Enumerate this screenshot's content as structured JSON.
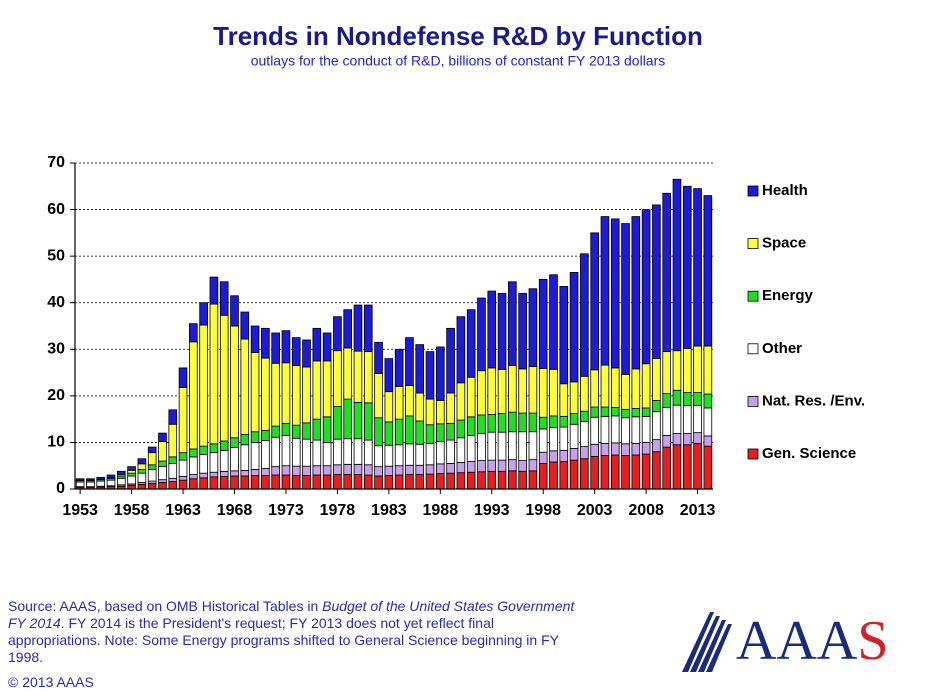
{
  "chart_data": {
    "type": "stacked-bar",
    "title": "Trends in Nondefense R&D by Function",
    "subtitle": "outlays for the conduct of R&D, billions of constant FY 2013 dollars",
    "x": [
      1953,
      1954,
      1955,
      1956,
      1957,
      1958,
      1959,
      1960,
      1961,
      1962,
      1963,
      1964,
      1965,
      1966,
      1967,
      1968,
      1969,
      1970,
      1971,
      1972,
      1973,
      1974,
      1975,
      1976,
      1977,
      1978,
      1979,
      1980,
      1981,
      1982,
      1983,
      1984,
      1985,
      1986,
      1987,
      1988,
      1989,
      1990,
      1991,
      1992,
      1993,
      1994,
      1995,
      1996,
      1997,
      1998,
      1999,
      2000,
      2001,
      2002,
      2003,
      2004,
      2005,
      2006,
      2007,
      2008,
      2009,
      2010,
      2011,
      2012,
      2013,
      2014
    ],
    "xlim": [
      1952.5,
      2014.5
    ],
    "xticks": [
      1953,
      1958,
      1963,
      1968,
      1973,
      1978,
      1983,
      1988,
      1993,
      1998,
      2003,
      2008,
      2013
    ],
    "ylim": [
      0,
      70
    ],
    "yticks": [
      0,
      10,
      20,
      30,
      40,
      50,
      60,
      70
    ],
    "grid": true,
    "legend": "right",
    "series": [
      {
        "name": "Health",
        "color": "#1c1cd8",
        "values": [
          0.3,
          0.3,
          0.4,
          0.5,
          0.7,
          0.8,
          1.1,
          1.2,
          1.8,
          3.1,
          4.2,
          3.9,
          4.8,
          5.8,
          7.2,
          6.5,
          5.8,
          5.7,
          6.4,
          6.5,
          6.9,
          6.0,
          5.8,
          7.0,
          6.0,
          7.3,
          8.2,
          9.9,
          10.0,
          6.7,
          7.1,
          8.0,
          10.3,
          10.4,
          10.2,
          11.5,
          13.9,
          14.2,
          14.5,
          15.6,
          16.5,
          16.3,
          18.0,
          16.2,
          16.7,
          19.1,
          20.3,
          20.9,
          23.5,
          26.3,
          29.4,
          31.9,
          32.0,
          32.4,
          32.7,
          33.1,
          33.0,
          34.0,
          36.8,
          34.8,
          33.8,
          32.3
        ]
      },
      {
        "name": "Space",
        "color": "#ffff33",
        "values": [
          0.1,
          0.1,
          0.1,
          0.2,
          0.3,
          0.6,
          1.2,
          2.6,
          4.2,
          7.0,
          14.0,
          23.0,
          26.0,
          30.0,
          27.0,
          24.0,
          20.5,
          17.0,
          15.5,
          13.5,
          13.0,
          12.8,
          12.0,
          12.5,
          12.0,
          12.0,
          11.0,
          11.0,
          11.0,
          9.5,
          6.5,
          7.0,
          6.5,
          6.0,
          5.5,
          5.0,
          6.5,
          8.0,
          8.5,
          9.5,
          10.0,
          9.5,
          10.0,
          9.5,
          10.0,
          10.5,
          10.0,
          7.0,
          6.8,
          7.5,
          8.0,
          9.0,
          8.5,
          7.5,
          8.5,
          9.5,
          9.0,
          9.0,
          8.5,
          9.5,
          10.0,
          10.3
        ]
      },
      {
        "name": "Energy",
        "color": "#22dd22",
        "values": [
          0.3,
          0.3,
          0.3,
          0.4,
          0.5,
          0.6,
          0.8,
          1.0,
          1.2,
          1.4,
          1.6,
          1.7,
          1.8,
          1.9,
          2.0,
          2.1,
          2.2,
          2.3,
          2.2,
          2.4,
          2.6,
          2.8,
          3.5,
          4.5,
          5.5,
          7.0,
          8.5,
          7.8,
          8.0,
          6.0,
          5.0,
          5.5,
          6.0,
          5.0,
          4.0,
          3.8,
          3.6,
          3.8,
          4.0,
          4.0,
          3.8,
          4.0,
          4.2,
          4.0,
          4.0,
          2.5,
          2.5,
          2.3,
          2.3,
          2.2,
          2.2,
          2.0,
          1.8,
          1.8,
          1.8,
          1.8,
          2.4,
          3.0,
          3.2,
          2.8,
          2.8,
          3.0
        ]
      },
      {
        "name": "Other",
        "color": "#ffffff",
        "values": [
          1.0,
          1.0,
          1.1,
          1.2,
          1.4,
          1.7,
          2.0,
          2.5,
          2.8,
          3.2,
          3.5,
          3.8,
          4.0,
          4.2,
          4.5,
          5.0,
          5.5,
          5.8,
          6.0,
          6.3,
          6.5,
          6.0,
          5.8,
          5.5,
          5.0,
          5.5,
          5.5,
          5.5,
          5.3,
          4.5,
          4.5,
          4.5,
          4.6,
          4.5,
          4.6,
          4.8,
          5.0,
          5.3,
          5.6,
          5.8,
          6.0,
          6.0,
          6.0,
          6.2,
          6.0,
          5.0,
          5.0,
          5.0,
          5.2,
          5.4,
          5.8,
          5.8,
          5.8,
          5.6,
          5.7,
          5.6,
          6.0,
          6.0,
          6.1,
          6.0,
          5.8,
          6.0
        ]
      },
      {
        "name": "Nat. Res. /Env.",
        "color": "#c8a0f0",
        "values": [
          0.2,
          0.2,
          0.2,
          0.2,
          0.3,
          0.3,
          0.4,
          0.5,
          0.6,
          0.7,
          0.8,
          0.9,
          1.0,
          1.0,
          1.1,
          1.1,
          1.2,
          1.3,
          1.5,
          1.8,
          2.0,
          2.0,
          2.0,
          2.0,
          2.0,
          2.1,
          2.2,
          2.2,
          2.2,
          2.0,
          2.0,
          2.0,
          2.0,
          2.0,
          2.0,
          2.1,
          2.1,
          2.2,
          2.3,
          2.4,
          2.4,
          2.4,
          2.4,
          2.3,
          2.4,
          2.4,
          2.4,
          2.4,
          2.5,
          2.6,
          2.6,
          2.6,
          2.6,
          2.5,
          2.5,
          2.5,
          2.6,
          2.5,
          2.4,
          2.4,
          2.3,
          2.2
        ]
      },
      {
        "name": "Gen. Science",
        "color": "#e81e1e",
        "values": [
          0.3,
          0.3,
          0.4,
          0.5,
          0.6,
          0.8,
          1.0,
          1.2,
          1.4,
          1.6,
          1.9,
          2.2,
          2.4,
          2.6,
          2.7,
          2.8,
          2.8,
          2.9,
          2.9,
          3.0,
          3.0,
          2.9,
          2.9,
          3.0,
          3.0,
          3.1,
          3.1,
          3.1,
          3.0,
          2.8,
          2.9,
          3.0,
          3.1,
          3.1,
          3.2,
          3.3,
          3.4,
          3.5,
          3.6,
          3.7,
          3.8,
          3.8,
          3.9,
          3.8,
          3.9,
          5.5,
          5.8,
          5.9,
          6.2,
          6.5,
          7.0,
          7.2,
          7.3,
          7.2,
          7.3,
          7.5,
          8.0,
          9.0,
          9.5,
          9.5,
          9.8,
          9.2
        ]
      }
    ]
  },
  "footer": {
    "source": [
      "Source: AAAS, based on OMB Historical Tables in ",
      "Budget of the United States Government FY 2014",
      ". FY 2014 is the President's request; FY 2013 does not yet reflect final appropriations. Note: Some Energy programs shifted to General Science beginning in FY 1998."
    ],
    "copyright": "© 2013 AAAS",
    "logo": [
      "AAA",
      "S"
    ]
  }
}
